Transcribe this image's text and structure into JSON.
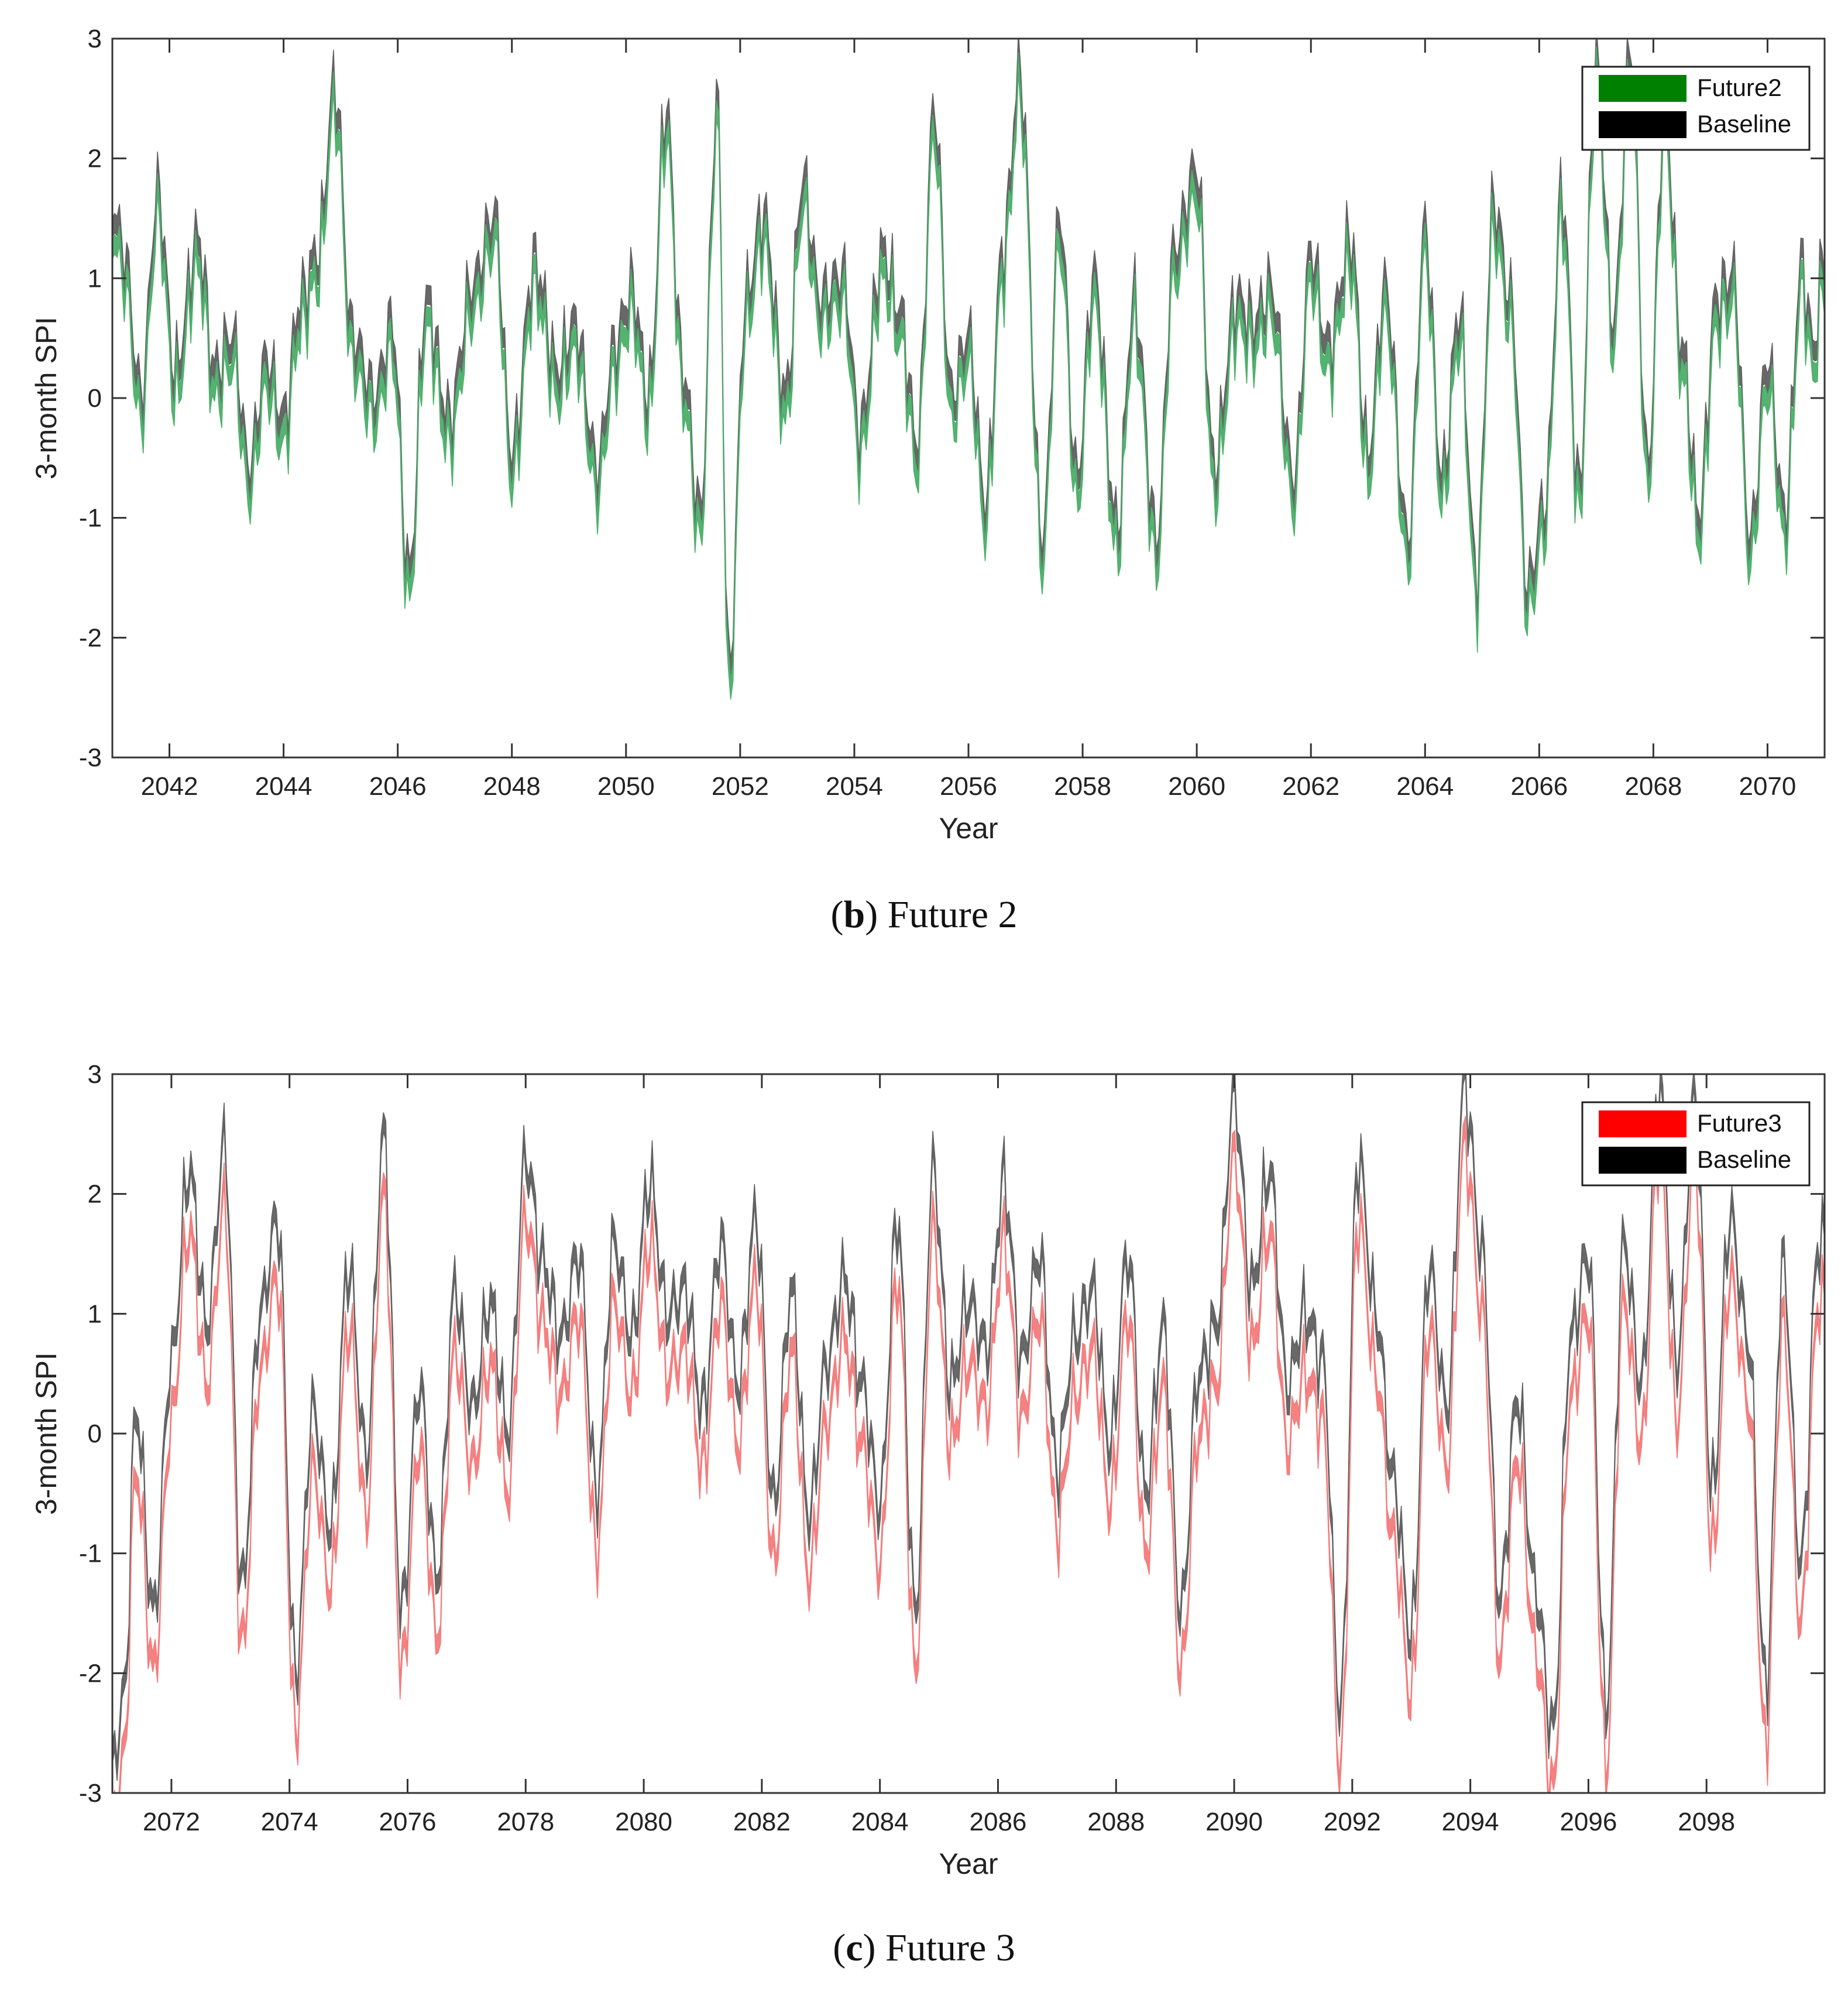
{
  "chart_data": [
    {
      "type": "area",
      "panel": "b",
      "caption_letter": "b",
      "caption_text": "Future 2",
      "xlabel": "Year",
      "ylabel": "3-month SPI",
      "xlim": [
        2041,
        2071
      ],
      "ylim": [
        -3,
        3
      ],
      "xticks": [
        2042,
        2044,
        2046,
        2048,
        2050,
        2052,
        2054,
        2056,
        2058,
        2060,
        2062,
        2064,
        2066,
        2068,
        2070
      ],
      "yticks": [
        -3,
        -2,
        -1,
        0,
        1,
        2,
        3
      ],
      "legend_position": "top-right",
      "series": [
        {
          "name": "Future2",
          "color": "#008000",
          "draw_color": "#4caf6a",
          "offset": -0.18,
          "spread": 0.16
        },
        {
          "name": "Baseline",
          "color": "#000000",
          "draw_color": "#606060",
          "offset": 0.0,
          "spread": 0.16
        }
      ],
      "baseline_anchor_years": [
        2041.0,
        2041.2,
        2041.5,
        2041.8,
        2042.1,
        2042.5,
        2042.8,
        2043.1,
        2043.4,
        2043.7,
        2044.0,
        2044.3,
        2044.6,
        2044.9,
        2045.2,
        2045.6,
        2045.9,
        2046.2,
        2046.5,
        2046.9,
        2047.3,
        2047.7,
        2048.0,
        2048.4,
        2048.8,
        2049.1,
        2049.5,
        2049.8,
        2050.1,
        2050.4,
        2050.7,
        2051.0,
        2051.3,
        2051.6,
        2051.8,
        2052.1,
        2052.4,
        2052.8,
        2053.1,
        2053.4,
        2053.8,
        2054.1,
        2054.5,
        2054.8,
        2055.1,
        2055.4,
        2055.7,
        2056.0,
        2056.3,
        2056.6,
        2056.9,
        2057.3,
        2057.6,
        2057.9,
        2058.2,
        2058.6,
        2058.9,
        2059.3,
        2059.6,
        2060.0,
        2060.3,
        2060.7,
        2061.0,
        2061.3,
        2061.7,
        2062.0,
        2062.3,
        2062.7,
        2063.0,
        2063.3,
        2063.7,
        2064.0,
        2064.3,
        2064.6,
        2064.9,
        2065.2,
        2065.5,
        2065.8,
        2066.1,
        2066.4,
        2066.7,
        2067.0,
        2067.3,
        2067.6,
        2067.9,
        2068.2,
        2068.5,
        2068.8,
        2069.1,
        2069.4,
        2069.7,
        2070.0,
        2070.3,
        2070.6,
        2070.8,
        2071.0
      ],
      "baseline_anchor_values": [
        1.6,
        1.2,
        0.0,
        1.7,
        0.2,
        1.3,
        0.2,
        0.5,
        -0.6,
        0.3,
        -0.2,
        0.8,
        1.2,
        2.6,
        0.5,
        0.0,
        0.6,
        -1.5,
        0.8,
        -0.2,
        0.9,
        1.5,
        -0.5,
        1.1,
        0.2,
        0.6,
        -0.6,
        0.4,
        0.9,
        0.0,
        2.4,
        0.2,
        -1.0,
        2.5,
        -2.3,
        0.8,
        1.5,
        0.0,
        1.8,
        0.8,
        1.0,
        -0.3,
        1.2,
        0.7,
        -0.4,
        2.4,
        0.0,
        0.5,
        -0.9,
        1.2,
        2.7,
        -1.2,
        1.5,
        -0.7,
        1.0,
        -1.1,
        0.8,
        -1.2,
        1.2,
        1.9,
        -0.6,
        0.8,
        0.6,
        0.9,
        -0.7,
        1.2,
        0.4,
        1.3,
        -0.5,
        0.9,
        -1.2,
        1.4,
        -0.7,
        0.7,
        -1.5,
        1.6,
        0.8,
        -1.6,
        -0.9,
        1.7,
        -0.8,
        2.8,
        0.6,
        2.9,
        -0.6,
        2.4,
        0.4,
        -1.0,
        0.8,
        1.0,
        -1.2,
        0.3,
        -1.0,
        1.1,
        0.4,
        1.2
      ]
    },
    {
      "type": "area",
      "panel": "c",
      "caption_letter": "c",
      "caption_text": "Future 3",
      "xlabel": "Year",
      "ylabel": "3-month SPI",
      "xlim": [
        2071,
        2100
      ],
      "ylim": [
        -3,
        3
      ],
      "xticks": [
        2072,
        2074,
        2076,
        2078,
        2080,
        2082,
        2084,
        2086,
        2088,
        2090,
        2092,
        2094,
        2096,
        2098
      ],
      "yticks": [
        -3,
        -2,
        -1,
        0,
        1,
        2,
        3
      ],
      "legend_position": "top-right",
      "series": [
        {
          "name": "Future3",
          "color": "#ff0000",
          "draw_color": "#f47b7b",
          "offset": -0.5,
          "spread": 0.16
        },
        {
          "name": "Baseline",
          "color": "#000000",
          "draw_color": "#606060",
          "offset": 0.0,
          "spread": 0.16
        }
      ],
      "baseline_anchor_years": [
        2071.0,
        2071.2,
        2071.4,
        2071.7,
        2072.0,
        2072.3,
        2072.6,
        2072.9,
        2073.2,
        2073.5,
        2073.8,
        2074.1,
        2074.4,
        2074.7,
        2075.0,
        2075.3,
        2075.6,
        2075.9,
        2076.2,
        2076.5,
        2076.8,
        2077.1,
        2077.4,
        2077.7,
        2078.0,
        2078.3,
        2078.6,
        2078.9,
        2079.2,
        2079.5,
        2079.8,
        2080.1,
        2080.4,
        2080.7,
        2081.0,
        2081.3,
        2081.6,
        2081.9,
        2082.2,
        2082.5,
        2082.8,
        2083.1,
        2083.4,
        2083.7,
        2084.0,
        2084.3,
        2084.6,
        2084.9,
        2085.2,
        2085.5,
        2085.8,
        2086.1,
        2086.4,
        2086.7,
        2087.0,
        2087.3,
        2087.6,
        2087.9,
        2088.2,
        2088.5,
        2088.8,
        2089.1,
        2089.4,
        2089.7,
        2090.0,
        2090.3,
        2090.6,
        2090.9,
        2091.2,
        2091.5,
        2091.8,
        2092.1,
        2092.4,
        2092.7,
        2093.0,
        2093.3,
        2093.6,
        2093.9,
        2094.2,
        2094.5,
        2094.8,
        2095.1,
        2095.4,
        2095.7,
        2096.0,
        2096.3,
        2096.6,
        2096.9,
        2097.2,
        2097.5,
        2097.8,
        2098.1,
        2098.4,
        2098.7,
        2099.0,
        2099.3,
        2099.6,
        2099.9
      ],
      "baseline_anchor_values": [
        -2.8,
        -2.2,
        0.2,
        -1.5,
        0.6,
        2.2,
        0.9,
        2.4,
        -1.3,
        1.0,
        1.8,
        -2.0,
        0.2,
        -0.8,
        1.4,
        -0.2,
        2.5,
        -1.5,
        0.4,
        -1.2,
        1.2,
        0.2,
        1.1,
        0.0,
        2.3,
        1.4,
        0.8,
        1.5,
        -0.5,
        1.6,
        0.8,
        2.1,
        1.0,
        1.2,
        0.2,
        1.6,
        0.4,
        1.8,
        -0.6,
        1.2,
        -0.7,
        0.6,
        1.3,
        0.4,
        -0.6,
        1.8,
        -1.5,
        2.2,
        0.4,
        1.1,
        0.7,
        2.1,
        0.6,
        1.5,
        -0.3,
        0.8,
        1.2,
        -0.1,
        1.5,
        -0.5,
        0.9,
        -1.5,
        0.5,
        0.9,
        2.8,
        1.2,
        2.2,
        0.4,
        1.0,
        0.6,
        -2.3,
        2.3,
        1.0,
        -0.4,
        -1.7,
        1.4,
        0.2,
        2.9,
        1.5,
        -1.4,
        0.3,
        -1.3,
        -2.5,
        0.8,
        1.5,
        -2.3,
        1.6,
        0.4,
        2.9,
        0.6,
        2.8,
        -0.5,
        1.8,
        0.8,
        -2.1,
        1.4,
        -1.1,
        1.6
      ]
    }
  ]
}
